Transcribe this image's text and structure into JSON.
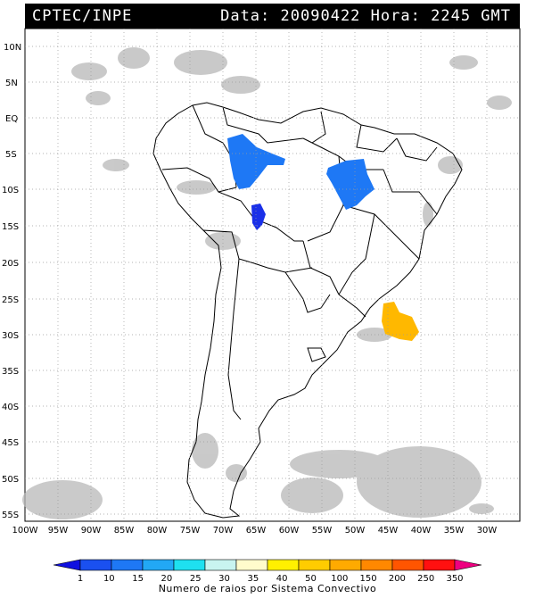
{
  "header": {
    "source": "CPTEC/INPE",
    "data_label": "Data:",
    "date": "20090422",
    "hora_label": "Hora:",
    "time": "2245 GMT"
  },
  "axes": {
    "lat_labels": [
      "10N",
      "5N",
      "EQ",
      "5S",
      "10S",
      "15S",
      "20S",
      "25S",
      "30S",
      "35S",
      "40S",
      "45S",
      "50S",
      "55S"
    ],
    "lon_labels": [
      "100W",
      "95W",
      "90W",
      "85W",
      "80W",
      "75W",
      "70W",
      "65W",
      "60W",
      "55W",
      "50W",
      "45W",
      "40W",
      "35W",
      "30W"
    ]
  },
  "legend": {
    "caption": "Numero de raios por Sistema Convectivo",
    "ticks": [
      "1",
      "10",
      "15",
      "20",
      "25",
      "30",
      "35",
      "40",
      "50",
      "100",
      "150",
      "200",
      "250",
      "350"
    ],
    "colors": [
      "#1010e0",
      "#1a50f0",
      "#1e78f5",
      "#22a8f5",
      "#1ee0f0",
      "#c8f4f0",
      "#fffccc",
      "#fff000",
      "#ffcc00",
      "#ffaa00",
      "#ff8800",
      "#ff5500",
      "#ff1010",
      "#ee0080"
    ]
  },
  "systems": [
    {
      "name": "west-amazon-cluster",
      "color": "#1e78f5"
    },
    {
      "name": "rondonia-cluster",
      "color": "#1a30e8"
    },
    {
      "name": "para-tocantins-cluster",
      "color": "#1e78f5"
    },
    {
      "name": "south-atlantic-cluster",
      "color": "#ffb800"
    }
  ]
}
